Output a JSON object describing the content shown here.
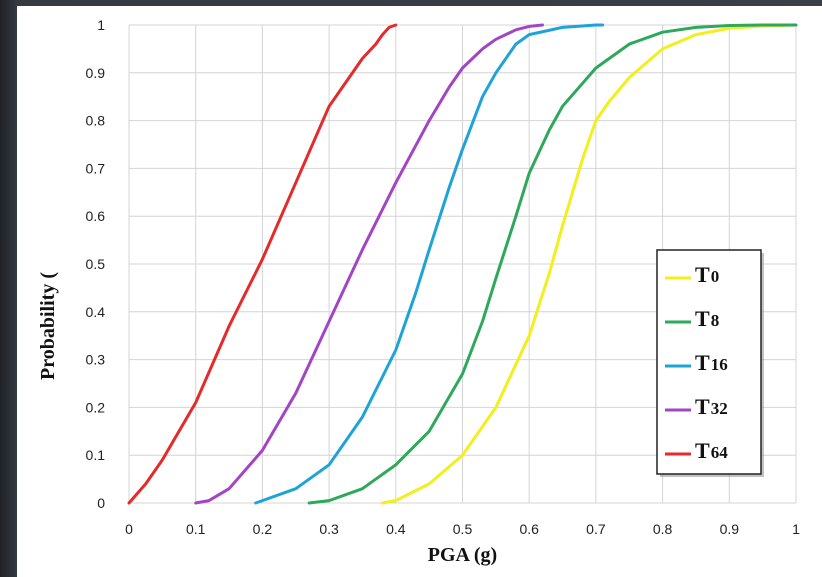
{
  "chart_data": {
    "type": "line",
    "xlabel": "PGA (g)",
    "ylabel": "Probability (",
    "xlim": [
      0,
      1
    ],
    "ylim": [
      0,
      1
    ],
    "x_ticks": [
      "0",
      "0.1",
      "0.2",
      "0.3",
      "0.4",
      "0.5",
      "0.6",
      "0.7",
      "0.8",
      "0.9",
      "1"
    ],
    "y_ticks": [
      "0",
      "0.1",
      "0.2",
      "0.3",
      "0.4",
      "0.5",
      "0.6",
      "0.7",
      "0.8",
      "0.9",
      "1"
    ],
    "grid": true,
    "legend_position": "bottom-right",
    "series": [
      {
        "name": "T0",
        "color": "#f2ef1d",
        "x": [
          0.38,
          0.4,
          0.45,
          0.5,
          0.55,
          0.6,
          0.63,
          0.65,
          0.68,
          0.7,
          0.72,
          0.75,
          0.8,
          0.85,
          0.9,
          0.95,
          1.0
        ],
        "y": [
          0.0,
          0.005,
          0.04,
          0.1,
          0.2,
          0.35,
          0.48,
          0.58,
          0.72,
          0.8,
          0.84,
          0.89,
          0.95,
          0.98,
          0.993,
          0.998,
          1.0
        ]
      },
      {
        "name": "T8",
        "color": "#2ea85a",
        "x": [
          0.27,
          0.3,
          0.35,
          0.4,
          0.45,
          0.5,
          0.53,
          0.55,
          0.58,
          0.6,
          0.63,
          0.65,
          0.7,
          0.75,
          0.8,
          0.85,
          0.9,
          0.95,
          1.0
        ],
        "y": [
          0.0,
          0.005,
          0.03,
          0.08,
          0.15,
          0.27,
          0.38,
          0.47,
          0.6,
          0.69,
          0.78,
          0.83,
          0.91,
          0.96,
          0.985,
          0.995,
          0.999,
          1.0,
          1.0
        ]
      },
      {
        "name": "T16",
        "color": "#1ea3d8",
        "x": [
          0.19,
          0.2,
          0.25,
          0.3,
          0.35,
          0.4,
          0.43,
          0.45,
          0.48,
          0.5,
          0.53,
          0.55,
          0.58,
          0.6,
          0.65,
          0.7,
          0.71
        ],
        "y": [
          0.0,
          0.005,
          0.03,
          0.08,
          0.18,
          0.32,
          0.44,
          0.53,
          0.66,
          0.74,
          0.85,
          0.9,
          0.96,
          0.98,
          0.995,
          1.0,
          1.0
        ]
      },
      {
        "name": "T32",
        "color": "#a245c4",
        "x": [
          0.1,
          0.12,
          0.15,
          0.2,
          0.25,
          0.3,
          0.35,
          0.4,
          0.45,
          0.48,
          0.5,
          0.53,
          0.55,
          0.58,
          0.6,
          0.62
        ],
        "y": [
          0.0,
          0.005,
          0.03,
          0.11,
          0.23,
          0.38,
          0.53,
          0.67,
          0.8,
          0.87,
          0.91,
          0.95,
          0.97,
          0.99,
          0.997,
          1.0
        ]
      },
      {
        "name": "T64",
        "color": "#e42a2a",
        "x": [
          0.0,
          0.025,
          0.05,
          0.075,
          0.1,
          0.125,
          0.15,
          0.2,
          0.25,
          0.3,
          0.33,
          0.35,
          0.37,
          0.38,
          0.39,
          0.4
        ],
        "y": [
          0.0,
          0.04,
          0.09,
          0.15,
          0.21,
          0.29,
          0.37,
          0.51,
          0.67,
          0.83,
          0.89,
          0.93,
          0.96,
          0.98,
          0.995,
          1.0
        ]
      }
    ]
  }
}
